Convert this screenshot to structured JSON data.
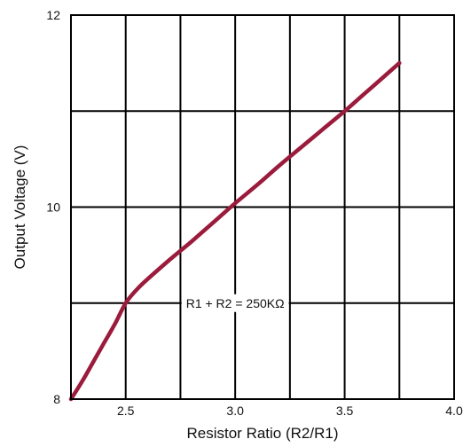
{
  "chart_data": {
    "type": "line",
    "xlabel": "Resistor Ratio (R2/R1)",
    "ylabel": "Output Voltage (V)",
    "xlim": [
      2.25,
      4.0
    ],
    "ylim": [
      8,
      12
    ],
    "x_ticks": [
      2.5,
      3.0,
      3.5,
      4.0
    ],
    "x_tick_labels": [
      "2.5",
      "3.0",
      "3.5",
      "4.0"
    ],
    "y_ticks": [
      8,
      10,
      12
    ],
    "y_tick_labels": [
      "8",
      "10",
      "12"
    ],
    "grid": true,
    "grid_x": [
      2.5,
      2.75,
      3.0,
      3.25,
      3.5,
      3.75
    ],
    "grid_y": [
      9,
      10,
      11
    ],
    "annotation": "R1 + R2 = 250KΩ",
    "annotation_x": 3.0,
    "annotation_y": 9.0,
    "series": [
      {
        "color": "#9b1b3c",
        "x": [
          2.25,
          2.3,
          2.35,
          2.4,
          2.45,
          2.5,
          2.55,
          2.6,
          2.7,
          2.8,
          2.9,
          3.0,
          3.1,
          3.2,
          3.3,
          3.4,
          3.5,
          3.6,
          3.7,
          3.75
        ],
        "y": [
          8.0,
          8.18,
          8.38,
          8.58,
          8.78,
          9.0,
          9.14,
          9.25,
          9.45,
          9.64,
          9.84,
          10.04,
          10.23,
          10.43,
          10.62,
          10.81,
          11.0,
          11.2,
          11.4,
          11.5
        ]
      }
    ]
  }
}
